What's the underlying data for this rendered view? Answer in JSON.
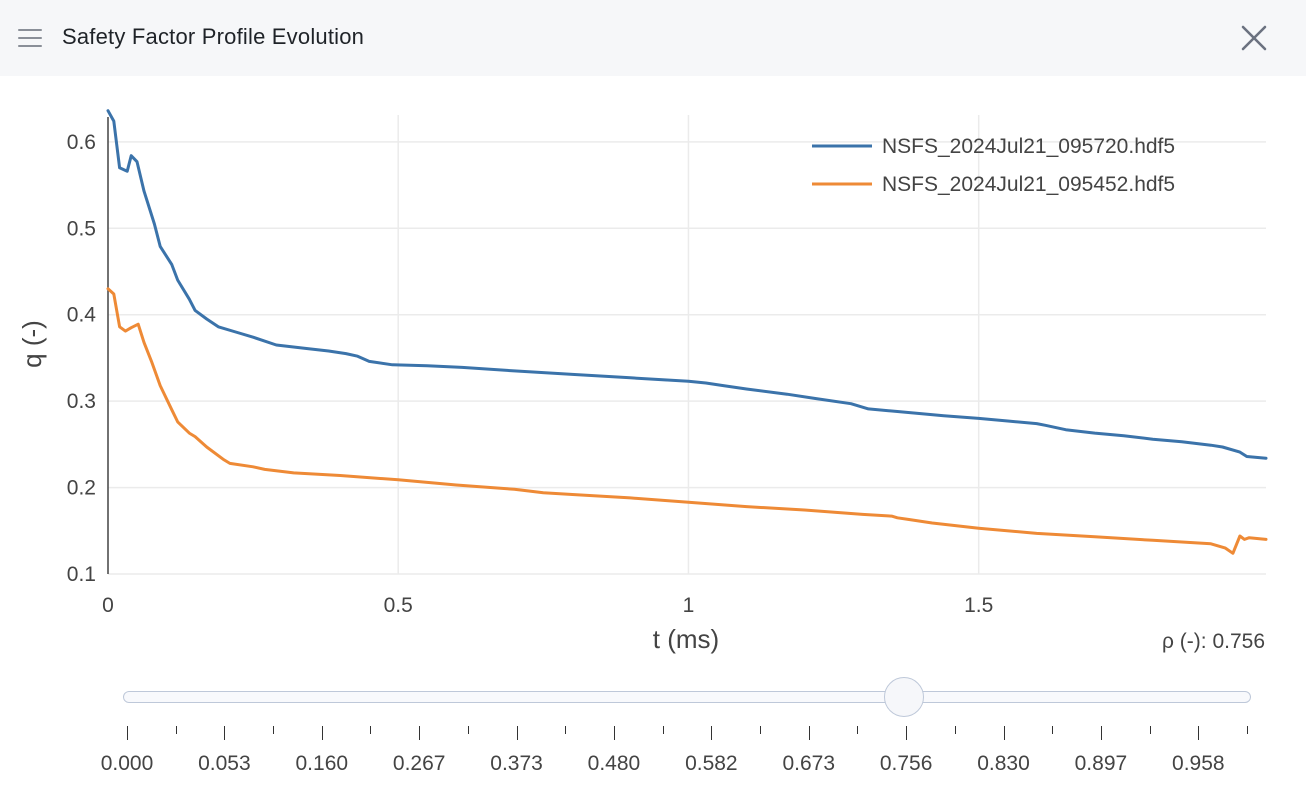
{
  "window": {
    "title": "Safety Factor Profile Evolution",
    "menu_icon": "hamburger-menu-icon",
    "close_icon": "close-icon"
  },
  "chart_data": {
    "type": "line",
    "title": "",
    "xlabel": "t (ms)",
    "ylabel": "q (-)",
    "xlim": [
      0,
      1.995
    ],
    "ylim": [
      0.1,
      0.66
    ],
    "x_ticks": [
      0,
      0.5,
      1,
      1.5
    ],
    "x_tick_labels": [
      "0",
      "0.5",
      "1",
      "1.5"
    ],
    "y_ticks": [
      0.1,
      0.2,
      0.3,
      0.4,
      0.5,
      0.6
    ],
    "y_tick_labels": [
      "0.1",
      "0.2",
      "0.3",
      "0.4",
      "0.5",
      "0.6"
    ],
    "grid": true,
    "legend_position": "top-right",
    "colors": [
      "#3b73aa",
      "#ee8a36"
    ],
    "series": [
      {
        "name": "NSFS_2024Jul21_095720.hdf5",
        "x": [
          0,
          0.01,
          0.02,
          0.033,
          0.04,
          0.05,
          0.062,
          0.08,
          0.09,
          0.11,
          0.12,
          0.14,
          0.15,
          0.17,
          0.19,
          0.22,
          0.25,
          0.29,
          0.34,
          0.38,
          0.41,
          0.43,
          0.45,
          0.49,
          0.55,
          0.61,
          0.7,
          0.8,
          0.9,
          1.0,
          1.03,
          1.06,
          1.1,
          1.17,
          1.22,
          1.28,
          1.31,
          1.36,
          1.44,
          1.5,
          1.55,
          1.6,
          1.615,
          1.65,
          1.7,
          1.75,
          1.8,
          1.85,
          1.9,
          1.92,
          1.95,
          1.962,
          1.995
        ],
        "values": [
          0.636,
          0.624,
          0.57,
          0.566,
          0.584,
          0.577,
          0.543,
          0.505,
          0.479,
          0.458,
          0.44,
          0.418,
          0.405,
          0.395,
          0.386,
          0.38,
          0.374,
          0.365,
          0.361,
          0.358,
          0.355,
          0.352,
          0.346,
          0.342,
          0.341,
          0.339,
          0.335,
          0.331,
          0.327,
          0.323,
          0.321,
          0.318,
          0.314,
          0.308,
          0.303,
          0.297,
          0.291,
          0.288,
          0.283,
          0.28,
          0.277,
          0.274,
          0.272,
          0.267,
          0.263,
          0.26,
          0.256,
          0.253,
          0.249,
          0.247,
          0.241,
          0.236,
          0.234
        ]
      },
      {
        "name": "NSFS_2024Jul21_095452.hdf5",
        "x": [
          0,
          0.01,
          0.02,
          0.03,
          0.04,
          0.052,
          0.062,
          0.075,
          0.09,
          0.11,
          0.12,
          0.14,
          0.15,
          0.17,
          0.2,
          0.21,
          0.25,
          0.27,
          0.32,
          0.4,
          0.5,
          0.6,
          0.7,
          0.75,
          0.8,
          0.9,
          1.0,
          1.04,
          1.1,
          1.2,
          1.3,
          1.35,
          1.36,
          1.38,
          1.42,
          1.5,
          1.6,
          1.7,
          1.8,
          1.9,
          1.925,
          1.938,
          1.95,
          1.958,
          1.966,
          1.995
        ],
        "values": [
          0.43,
          0.424,
          0.386,
          0.381,
          0.385,
          0.389,
          0.368,
          0.346,
          0.318,
          0.29,
          0.276,
          0.263,
          0.259,
          0.247,
          0.232,
          0.228,
          0.224,
          0.221,
          0.217,
          0.214,
          0.209,
          0.203,
          0.198,
          0.194,
          0.192,
          0.188,
          0.183,
          0.181,
          0.178,
          0.174,
          0.169,
          0.167,
          0.165,
          0.163,
          0.159,
          0.153,
          0.147,
          0.143,
          0.139,
          0.135,
          0.13,
          0.124,
          0.144,
          0.14,
          0.142,
          0.14
        ]
      }
    ]
  },
  "rho_readout": "ρ (-): 0.756",
  "slider": {
    "selected_index": 8,
    "labels": [
      "0.000",
      "0.053",
      "0.160",
      "0.267",
      "0.373",
      "0.480",
      "0.582",
      "0.673",
      "0.756",
      "0.830",
      "0.897",
      "0.958"
    ],
    "minor_tick_count": 24
  }
}
